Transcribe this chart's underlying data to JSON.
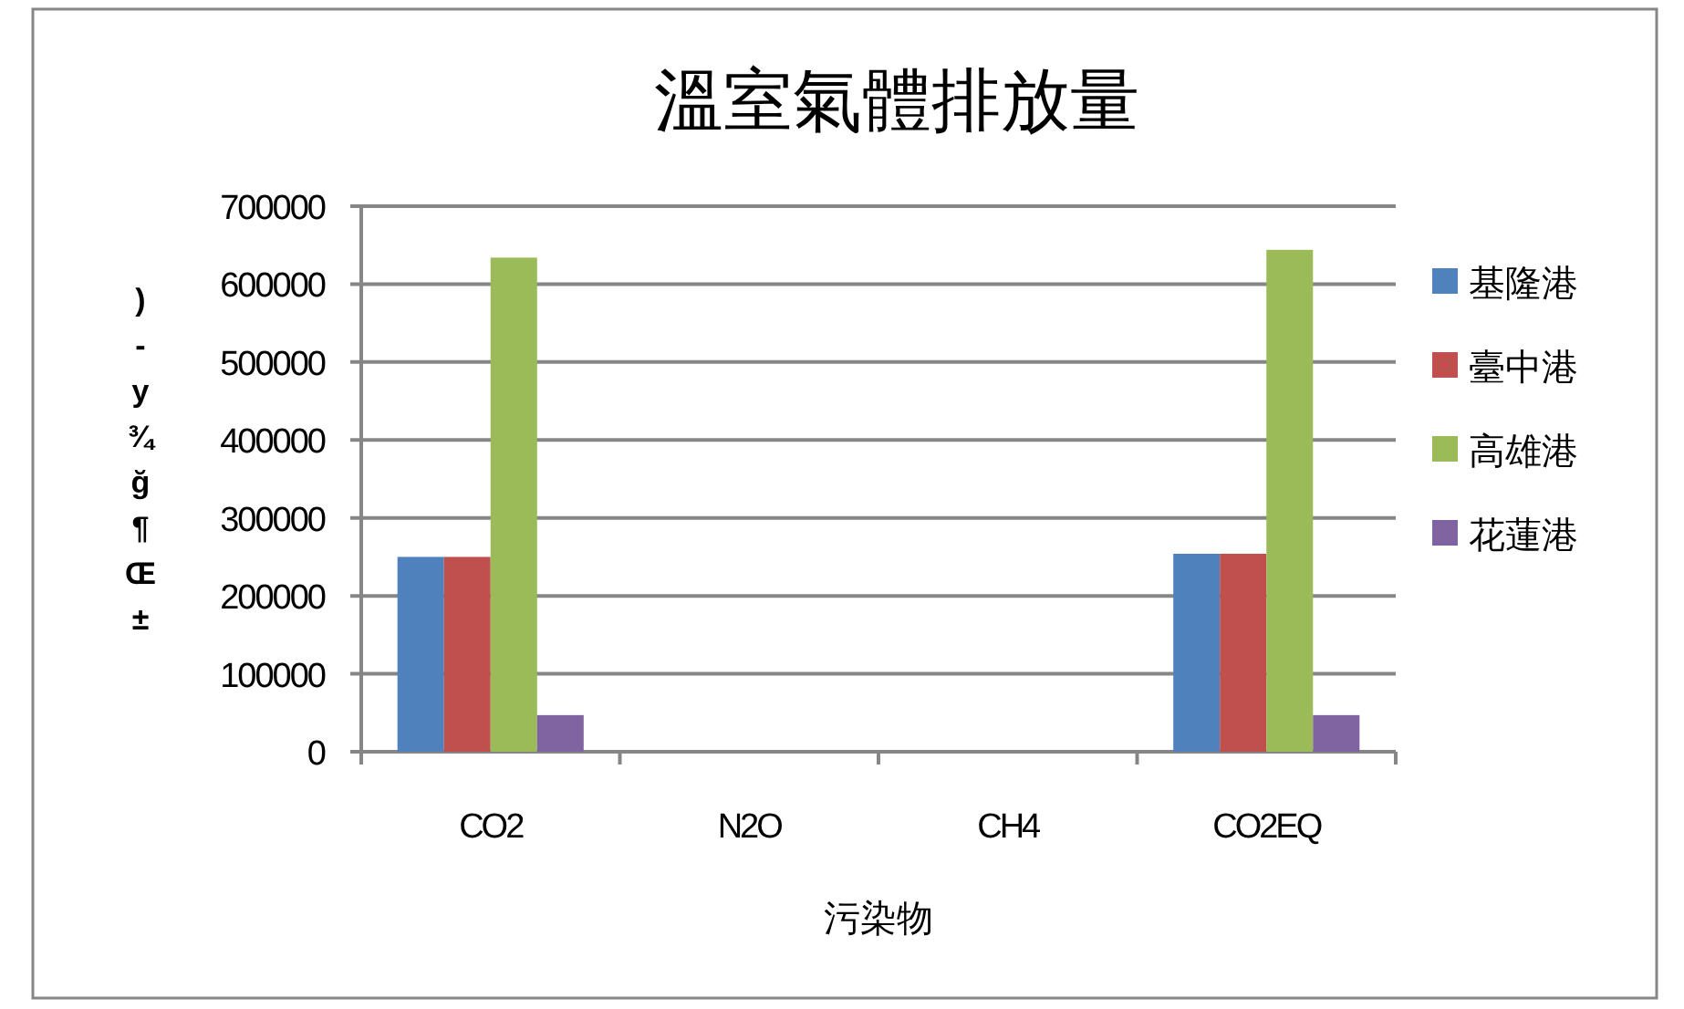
{
  "chart_data": {
    "type": "bar",
    "title": "溫室氣體排放量",
    "xlabel": "污染物",
    "ylabel": ")-y¾ğ¶Œ±",
    "categories": [
      "CO2",
      "N2O",
      "CH4",
      "CO2EQ"
    ],
    "series": [
      {
        "name": "基隆港",
        "color": "#4f81bd",
        "values": [
          250000,
          0,
          0,
          254000
        ]
      },
      {
        "name": "臺中港",
        "color": "#c0504d",
        "values": [
          250000,
          0,
          0,
          254000
        ]
      },
      {
        "name": "高雄港",
        "color": "#9bbb59",
        "values": [
          634000,
          0,
          0,
          644000
        ]
      },
      {
        "name": "花蓮港",
        "color": "#8064a2",
        "values": [
          47000,
          0,
          0,
          47000
        ]
      }
    ],
    "ylim": [
      0,
      700000
    ],
    "yticks": [
      0,
      100000,
      200000,
      300000,
      400000,
      500000,
      600000,
      700000
    ],
    "grid": "y",
    "legend": "right"
  }
}
